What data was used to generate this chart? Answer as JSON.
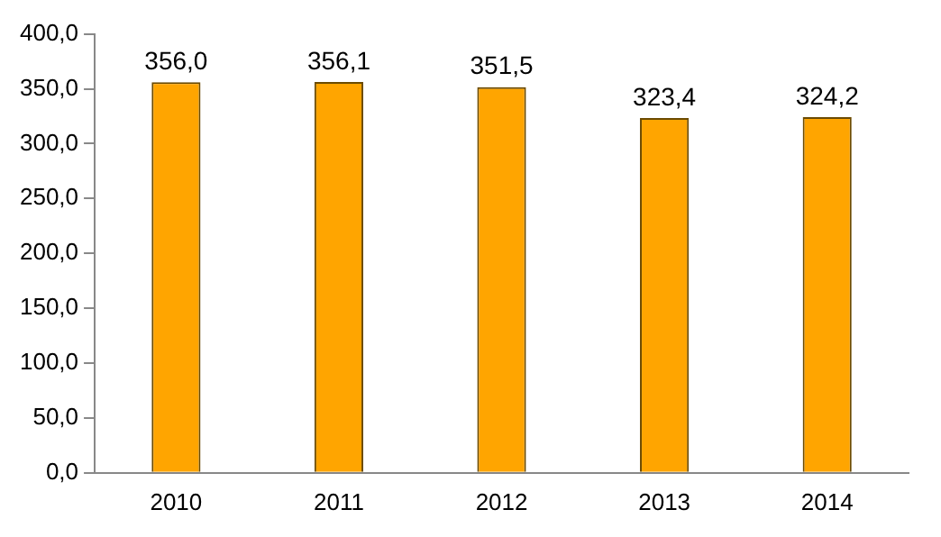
{
  "chart_data": {
    "type": "bar",
    "categories": [
      "2010",
      "2011",
      "2012",
      "2013",
      "2014"
    ],
    "values": [
      356.0,
      356.1,
      351.5,
      323.4,
      324.2
    ],
    "value_labels": [
      "356,0",
      "356,1",
      "351,5",
      "323,4",
      "324,2"
    ],
    "color": "#ffa500",
    "ylim": [
      0,
      400
    ],
    "yticks": [
      {
        "value": 0,
        "label": "0,0"
      },
      {
        "value": 50,
        "label": "50,0"
      },
      {
        "value": 100,
        "label": "100,0"
      },
      {
        "value": 150,
        "label": "150,0"
      },
      {
        "value": 200,
        "label": "200,0"
      },
      {
        "value": 250,
        "label": "250,0"
      },
      {
        "value": 300,
        "label": "300,0"
      },
      {
        "value": 350,
        "label": "350,0"
      },
      {
        "value": 400,
        "label": "400,0"
      }
    ],
    "grid": false,
    "legend": false
  }
}
